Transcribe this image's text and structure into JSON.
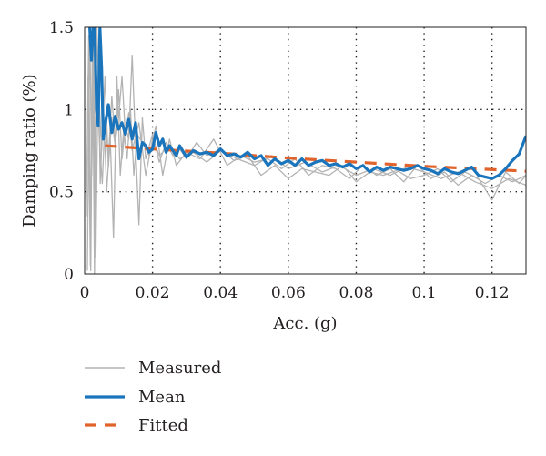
{
  "chart_data": {
    "type": "line",
    "title": "",
    "xlabel": "Acc. (g)",
    "ylabel": "Damping ratio (%)",
    "xlim": [
      0,
      0.13
    ],
    "ylim": [
      0,
      1.5
    ],
    "x_ticks": [
      0,
      0.02,
      0.04,
      0.06,
      0.08,
      0.1,
      0.12
    ],
    "x_tick_labels": [
      "0",
      "0.02",
      "0.04",
      "0.06",
      "0.08",
      "0.1",
      "0.12"
    ],
    "y_ticks": [
      0,
      0.5,
      1,
      1.5
    ],
    "y_tick_labels": [
      "0",
      "0.5",
      "1",
      "1.5"
    ],
    "grid": true,
    "grid_style": "dotted",
    "legend_position": "below-left",
    "series": [
      {
        "name": "Measured",
        "color": "#b3b3b3",
        "style": "solid",
        "traces": [
          {
            "x": [
              0.0005,
              0.0012,
              0.0018,
              0.0024,
              0.003,
              0.0036,
              0.0042,
              0.005,
              0.006,
              0.007,
              0.008,
              0.009,
              0.01,
              0.011,
              0.012,
              0.013,
              0.014,
              0.015,
              0.016,
              0.017,
              0.018,
              0.02,
              0.022,
              0.024,
              0.026,
              0.028,
              0.03,
              0.033,
              0.036,
              0.04,
              0.044,
              0.048,
              0.052,
              0.056,
              0.06,
              0.064,
              0.068,
              0.072,
              0.076,
              0.08,
              0.084,
              0.088,
              0.092,
              0.096,
              0.1,
              0.104,
              0.108,
              0.112,
              0.116,
              0.12,
              0.124,
              0.128,
              0.13
            ],
            "y": [
              0.35,
              1.45,
              0.02,
              1.5,
              0.4,
              1.5,
              1.1,
              0.75,
              1.2,
              0.65,
              0.95,
              0.78,
              1.12,
              0.7,
              0.9,
              0.82,
              1.33,
              0.78,
              0.3,
              0.95,
              0.7,
              0.85,
              0.68,
              0.8,
              0.72,
              0.76,
              0.7,
              0.8,
              0.72,
              0.76,
              0.69,
              0.72,
              0.6,
              0.66,
              0.58,
              0.64,
              0.62,
              0.6,
              0.66,
              0.56,
              0.62,
              0.6,
              0.63,
              0.58,
              0.6,
              0.64,
              0.56,
              0.62,
              0.58,
              0.45,
              0.62,
              0.55,
              0.6
            ]
          },
          {
            "x": [
              0.0008,
              0.0015,
              0.0021,
              0.0027,
              0.0033,
              0.004,
              0.0046,
              0.0055,
              0.0065,
              0.0075,
              0.0085,
              0.0095,
              0.0105,
              0.0115,
              0.0125,
              0.0135,
              0.0145,
              0.0155,
              0.017,
              0.019,
              0.021,
              0.023,
              0.025,
              0.027,
              0.03,
              0.034,
              0.038,
              0.042,
              0.046,
              0.05,
              0.054,
              0.058,
              0.062,
              0.066,
              0.07,
              0.074,
              0.078,
              0.082,
              0.086,
              0.09,
              0.094,
              0.098,
              0.102,
              0.106,
              0.11,
              0.114,
              0.118,
              0.122,
              0.126,
              0.13
            ],
            "y": [
              0.02,
              1.5,
              0.6,
              1.4,
              0.1,
              1.3,
              0.55,
              1.05,
              0.5,
              0.85,
              0.22,
              1.2,
              0.6,
              0.88,
              0.7,
              1.0,
              0.6,
              0.85,
              0.8,
              0.72,
              0.9,
              0.6,
              0.82,
              0.66,
              0.74,
              0.7,
              0.82,
              0.66,
              0.72,
              0.68,
              0.7,
              0.64,
              0.7,
              0.6,
              0.66,
              0.64,
              0.58,
              0.66,
              0.6,
              0.64,
              0.56,
              0.66,
              0.58,
              0.62,
              0.54,
              0.6,
              0.55,
              0.6,
              0.56,
              0.6
            ]
          },
          {
            "x": [
              0.001,
              0.0017,
              0.0023,
              0.0029,
              0.0035,
              0.0044,
              0.0052,
              0.006,
              0.007,
              0.008,
              0.009,
              0.01,
              0.011,
              0.012,
              0.013,
              0.014,
              0.016,
              0.018,
              0.02,
              0.022,
              0.025,
              0.028,
              0.032,
              0.036,
              0.04,
              0.045,
              0.05,
              0.055,
              0.06,
              0.065,
              0.07,
              0.075,
              0.08,
              0.085,
              0.09,
              0.095,
              0.1,
              0.105,
              0.11,
              0.115,
              0.12,
              0.125,
              0.13
            ],
            "y": [
              1.2,
              0.05,
              1.5,
              0.0,
              1.2,
              0.8,
              0.55,
              0.95,
              0.7,
              1.08,
              0.8,
              0.95,
              1.2,
              0.85,
              0.98,
              0.75,
              0.92,
              0.6,
              0.82,
              0.72,
              0.78,
              0.7,
              0.74,
              0.68,
              0.75,
              0.7,
              0.66,
              0.72,
              0.64,
              0.68,
              0.62,
              0.66,
              0.6,
              0.64,
              0.6,
              0.65,
              0.62,
              0.58,
              0.62,
              0.56,
              0.52,
              0.58,
              0.54
            ]
          }
        ]
      },
      {
        "name": "Mean",
        "color": "#1b75bc",
        "style": "solid",
        "x": [
          0.0015,
          0.002,
          0.0025,
          0.003,
          0.0035,
          0.004,
          0.0045,
          0.005,
          0.0055,
          0.006,
          0.007,
          0.008,
          0.009,
          0.01,
          0.011,
          0.012,
          0.013,
          0.014,
          0.015,
          0.016,
          0.017,
          0.018,
          0.019,
          0.02,
          0.021,
          0.022,
          0.023,
          0.024,
          0.025,
          0.026,
          0.027,
          0.028,
          0.03,
          0.032,
          0.034,
          0.036,
          0.038,
          0.04,
          0.042,
          0.044,
          0.046,
          0.048,
          0.05,
          0.052,
          0.054,
          0.056,
          0.058,
          0.06,
          0.062,
          0.064,
          0.066,
          0.068,
          0.07,
          0.072,
          0.074,
          0.076,
          0.078,
          0.08,
          0.082,
          0.084,
          0.086,
          0.088,
          0.09,
          0.092,
          0.094,
          0.096,
          0.098,
          0.1,
          0.102,
          0.104,
          0.106,
          0.108,
          0.11,
          0.112,
          0.114,
          0.116,
          0.118,
          0.12,
          0.122,
          0.124,
          0.126,
          0.128,
          0.13
        ],
        "y": [
          1.5,
          1.3,
          1.5,
          1.5,
          1.0,
          0.9,
          1.5,
          1.25,
          0.82,
          0.9,
          1.03,
          0.86,
          0.96,
          0.88,
          0.92,
          0.85,
          0.94,
          0.82,
          0.92,
          0.7,
          0.8,
          0.78,
          0.74,
          0.76,
          0.86,
          0.78,
          0.82,
          0.74,
          0.78,
          0.75,
          0.72,
          0.78,
          0.71,
          0.75,
          0.73,
          0.74,
          0.72,
          0.76,
          0.72,
          0.73,
          0.71,
          0.74,
          0.7,
          0.72,
          0.66,
          0.7,
          0.67,
          0.69,
          0.66,
          0.7,
          0.66,
          0.68,
          0.69,
          0.66,
          0.67,
          0.65,
          0.67,
          0.64,
          0.66,
          0.62,
          0.65,
          0.63,
          0.65,
          0.64,
          0.63,
          0.64,
          0.66,
          0.64,
          0.63,
          0.61,
          0.64,
          0.62,
          0.61,
          0.63,
          0.65,
          0.6,
          0.59,
          0.58,
          0.6,
          0.64,
          0.69,
          0.73,
          0.84
        ]
      },
      {
        "name": "Fitted",
        "color": "#e0632b",
        "style": "dashed",
        "x": [
          0.006,
          0.02,
          0.04,
          0.06,
          0.08,
          0.1,
          0.12,
          0.13
        ],
        "y": [
          0.78,
          0.76,
          0.735,
          0.705,
          0.68,
          0.655,
          0.635,
          0.625
        ]
      }
    ]
  }
}
